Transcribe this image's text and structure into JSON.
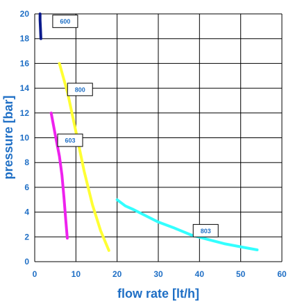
{
  "chart_data": {
    "type": "line",
    "xlabel": "flow rate [lt/h]",
    "ylabel": "pressure [bar]",
    "xlim": [
      0,
      60
    ],
    "ylim": [
      0,
      20
    ],
    "xticks": [
      "0",
      "10",
      "20",
      "30",
      "40",
      "50",
      "60"
    ],
    "yticks": [
      "0",
      "2",
      "4",
      "6",
      "8",
      "10",
      "12",
      "14",
      "16",
      "18",
      "20"
    ],
    "grid": true,
    "legend": "none",
    "series": [
      {
        "name": "600",
        "color": "#0a1a8c",
        "x": [
          1.3,
          1.3,
          1.4,
          1.5
        ],
        "y": [
          20,
          19.5,
          18.8,
          18
        ]
      },
      {
        "name": "800",
        "color": "#ffff33",
        "x": [
          6,
          8,
          10,
          12,
          14,
          16,
          18
        ],
        "y": [
          16,
          13.6,
          10.5,
          7.3,
          4.6,
          2.5,
          0.9
        ]
      },
      {
        "name": "603",
        "color": "#ee22ee",
        "x": [
          4,
          5,
          6,
          6.6,
          7.1,
          7.5,
          7.9
        ],
        "y": [
          12,
          10.2,
          8.5,
          7,
          5.2,
          3.5,
          1.9
        ]
      },
      {
        "name": "803",
        "color": "#33ffff",
        "x": [
          20,
          22,
          24,
          27,
          30,
          34,
          38,
          42,
          46,
          50,
          54
        ],
        "y": [
          5,
          4.5,
          4.2,
          3.7,
          3.2,
          2.7,
          2.15,
          1.8,
          1.45,
          1.2,
          0.95
        ]
      }
    ],
    "annotations": [
      {
        "text": "600",
        "x": 7.4,
        "y": 19.4
      },
      {
        "text": "800",
        "x": 11,
        "y": 13.9
      },
      {
        "text": "603",
        "x": 8.6,
        "y": 9.8
      },
      {
        "text": "803",
        "x": 41.5,
        "y": 2.5
      }
    ]
  }
}
